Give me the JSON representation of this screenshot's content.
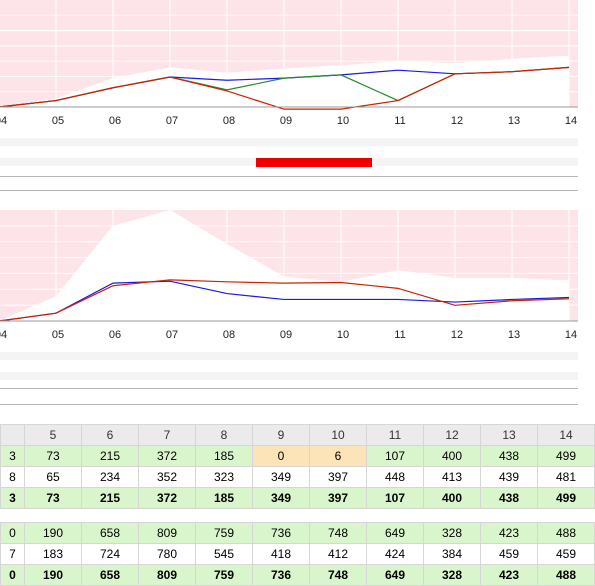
{
  "chart_data": [
    {
      "type": "line",
      "categories": [
        "04",
        "05",
        "06",
        "07",
        "08",
        "09",
        "10",
        "11",
        "12",
        "13",
        "14"
      ],
      "ylim": [
        0,
        500
      ],
      "envelope": [
        0,
        40,
        135,
        185,
        160,
        180,
        195,
        215,
        205,
        225,
        240
      ],
      "series": [
        {
          "color": "#1a1ae6",
          "values": [
            0,
            30,
            90,
            140,
            125,
            135,
            150,
            172,
            155,
            165,
            185
          ]
        },
        {
          "color": "#2a8a2a",
          "values": [
            0,
            30,
            90,
            140,
            80,
            135,
            150,
            30,
            155,
            165,
            185
          ]
        },
        {
          "color": "#cc2200",
          "values": [
            0,
            30,
            90,
            140,
            75,
            -10,
            -10,
            30,
            155,
            165,
            185
          ]
        }
      ]
    },
    {
      "type": "line",
      "categories": [
        "04",
        "05",
        "06",
        "07",
        "08",
        "09",
        "10",
        "11",
        "12",
        "13",
        "14"
      ],
      "ylim": [
        0,
        850
      ],
      "envelope": [
        0,
        190,
        730,
        850,
        590,
        340,
        300,
        390,
        330,
        330,
        310
      ],
      "series": [
        {
          "color": "#1a1ae6",
          "values": [
            0,
            60,
            290,
            305,
            210,
            165,
            165,
            165,
            145,
            165,
            180
          ]
        },
        {
          "color": "#cc2200",
          "values": [
            0,
            60,
            270,
            315,
            300,
            290,
            295,
            250,
            120,
            155,
            170
          ]
        }
      ]
    }
  ],
  "table": {
    "columns": [
      "5",
      "6",
      "7",
      "8",
      "9",
      "10",
      "11",
      "12",
      "13",
      "14"
    ],
    "group1": [
      {
        "style": "green",
        "first": "3",
        "values": [
          "73",
          "215",
          "372",
          "185",
          "0",
          "6",
          "107",
          "400",
          "438",
          "499"
        ],
        "warn": [
          4,
          5
        ]
      },
      {
        "style": "plain",
        "first": "8",
        "values": [
          "65",
          "234",
          "352",
          "323",
          "349",
          "397",
          "448",
          "413",
          "439",
          "481"
        ]
      },
      {
        "style": "green bold",
        "first": "3",
        "values": [
          "73",
          "215",
          "372",
          "185",
          "349",
          "397",
          "107",
          "400",
          "438",
          "499"
        ]
      }
    ],
    "group2": [
      {
        "style": "green",
        "first": "0",
        "values": [
          "190",
          "658",
          "809",
          "759",
          "736",
          "748",
          "649",
          "328",
          "423",
          "488"
        ]
      },
      {
        "style": "plain",
        "first": "7",
        "values": [
          "183",
          "724",
          "780",
          "545",
          "418",
          "412",
          "424",
          "384",
          "459",
          "459"
        ]
      },
      {
        "style": "green bold",
        "first": "0",
        "values": [
          "190",
          "658",
          "809",
          "759",
          "736",
          "748",
          "649",
          "328",
          "423",
          "488"
        ]
      }
    ]
  }
}
